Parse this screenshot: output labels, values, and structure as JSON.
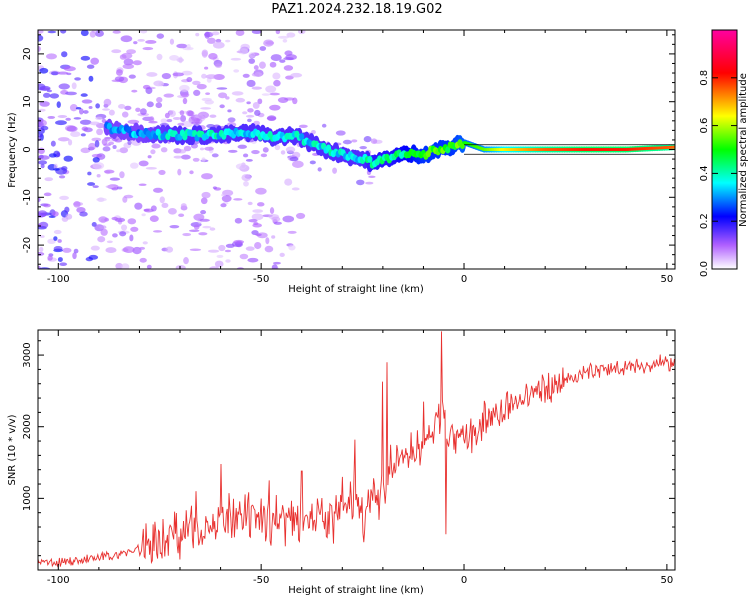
{
  "title": "PAZ1.2024.232.18.19.G02",
  "chart_data": [
    {
      "type": "heatmap",
      "xlabel": "Height of straight line (km)",
      "ylabel": "Frequency (Hz)",
      "xlim": [
        -105,
        52
      ],
      "ylim": [
        -25,
        25
      ],
      "xticks": [
        -100,
        -50,
        0,
        50
      ],
      "yticks": [
        -20,
        -10,
        0,
        10,
        20
      ],
      "colorbar": {
        "label": "Normalized spectral amplitude",
        "range": [
          0,
          1
        ],
        "ticks": [
          0.0,
          0.2,
          0.4,
          0.6,
          0.8
        ],
        "tick_labels": [
          "0.0",
          "0.2",
          "0.4",
          "0.6",
          "0.8"
        ],
        "colormap": [
          "#ffffff",
          "#b060ff",
          "#0000ff",
          "#00ffff",
          "#00ff00",
          "#ffff00",
          "#ff0000",
          "#ff00a0"
        ]
      },
      "ridge": {
        "x": [
          -88,
          -80,
          -70,
          -60,
          -52,
          -46,
          -42,
          -38,
          -34,
          -30,
          -25,
          -22,
          -18,
          -14,
          -10,
          -6,
          -3,
          0,
          5,
          10,
          20,
          30,
          40,
          52
        ],
        "y": [
          4.5,
          3.5,
          3,
          3,
          3.5,
          2.5,
          3,
          1.5,
          0,
          -1,
          -2,
          -3,
          -1.5,
          -1,
          -1,
          0,
          0.5,
          1.5,
          0,
          0,
          0,
          0,
          0,
          0.5
        ]
      },
      "ridge_amplitude": [
        0.25,
        0.25,
        0.3,
        0.3,
        0.3,
        0.3,
        0.3,
        0.3,
        0.3,
        0.3,
        0.3,
        0.35,
        0.35,
        0.4,
        0.45,
        0.45,
        0.45,
        0.5,
        0.55,
        0.65,
        0.75,
        0.8,
        0.8,
        0.75
      ]
    },
    {
      "type": "line",
      "xlabel": "Height of straight line (km)",
      "ylabel": "SNR (10 * v/v)",
      "xlim": [
        -105,
        52
      ],
      "ylim": [
        0,
        3350
      ],
      "xticks": [
        -100,
        -50,
        0,
        50
      ],
      "yticks": [
        1000,
        2000,
        3000
      ],
      "color": "#e8312f",
      "series": [
        {
          "x": [
            -105,
            -100,
            -95,
            -90,
            -85,
            -80,
            -75,
            -70,
            -65,
            -60,
            -55,
            -50,
            -45,
            -40,
            -35,
            -30,
            -27,
            -25,
            -22,
            -20,
            -18,
            -15,
            -12,
            -10,
            -8,
            -6,
            -5,
            -4,
            -2,
            0,
            5,
            10,
            15,
            20,
            25,
            30,
            35,
            40,
            45,
            52
          ],
          "values": [
            100,
            110,
            130,
            170,
            220,
            300,
            430,
            520,
            600,
            650,
            700,
            680,
            720,
            760,
            700,
            750,
            1050,
            700,
            1000,
            1100,
            1350,
            1600,
            1700,
            1750,
            1850,
            2150,
            2300,
            1900,
            1750,
            1800,
            2050,
            2250,
            2400,
            2550,
            2650,
            2750,
            2800,
            2850,
            2850,
            2900
          ]
        }
      ]
    }
  ]
}
